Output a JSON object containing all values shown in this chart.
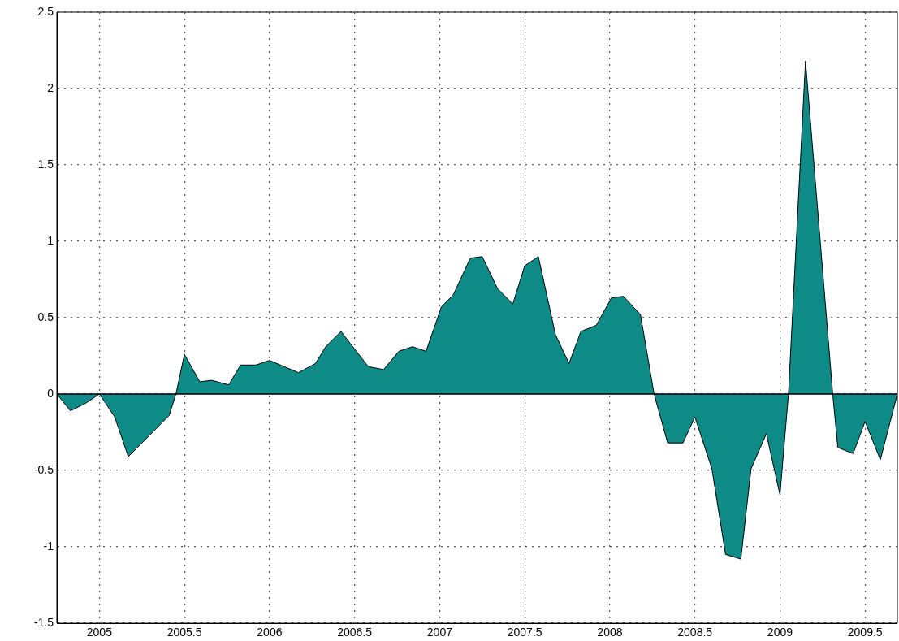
{
  "chart_data": {
    "type": "area",
    "x": [
      2004.75,
      2004.83,
      2004.92,
      2005,
      2005.09,
      2005.17,
      2005.41,
      2005.45,
      2005.5,
      2005.59,
      2005.66,
      2005.76,
      2005.83,
      2005.92,
      2006,
      2006.17,
      2006.27,
      2006.33,
      2006.42,
      2006.58,
      2006.67,
      2006.76,
      2006.84,
      2006.92,
      2007.01,
      2007.08,
      2007.18,
      2007.25,
      2007.34,
      2007.43,
      2007.5,
      2007.58,
      2007.68,
      2007.76,
      2007.83,
      2007.92,
      2008.01,
      2008.08,
      2008.18,
      2008.26,
      2008.34,
      2008.43,
      2008.5,
      2008.6,
      2008.68,
      2008.77,
      2008.83,
      2008.92,
      2009,
      2009.05,
      2009.15,
      2009.31,
      2009.34,
      2009.43,
      2009.5,
      2009.59,
      2009.69
    ],
    "series": [
      {
        "color": "#0e8a87",
        "values": [
          0,
          -0.11,
          -0.06,
          0,
          -0.15,
          -0.41,
          -0.14,
          0,
          0.26,
          0.08,
          0.09,
          0.06,
          0.19,
          0.19,
          0.22,
          0.14,
          0.2,
          0.31,
          0.41,
          0.18,
          0.16,
          0.28,
          0.31,
          0.28,
          0.57,
          0.65,
          0.89,
          0.9,
          0.69,
          0.59,
          0.84,
          0.9,
          0.39,
          0.2,
          0.41,
          0.45,
          0.63,
          0.64,
          0.52,
          0,
          -0.32,
          -0.32,
          -0.15,
          -0.49,
          -1.05,
          -1.08,
          -0.49,
          -0.26,
          -0.66,
          0,
          2.18,
          0,
          -0.35,
          -0.39,
          -0.18,
          -0.43,
          0
        ]
      }
    ],
    "xlim": [
      2004.75,
      2009.69
    ],
    "xticks": [
      2005,
      2005.5,
      2006,
      2006.5,
      2007,
      2007.5,
      2008,
      2008.5,
      2009,
      2009.5
    ],
    "ylim": [
      -1.5,
      2.5
    ],
    "yticks": [
      -1.5,
      -1,
      -0.5,
      0,
      0.5,
      1,
      1.5,
      2,
      2.5
    ],
    "grid": true,
    "line_style": "solid",
    "legend": false
  }
}
